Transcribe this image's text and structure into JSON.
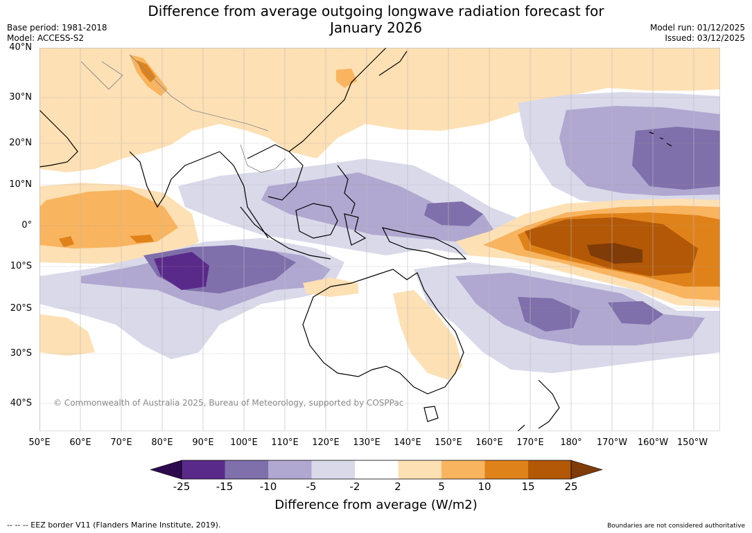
{
  "title_line1": "Difference from average outgoing longwave radiation forecast for",
  "title_line2": "January 2026",
  "base_period": "Base period: 1981-2018",
  "model": "Model: ACCESS-S2",
  "model_run": "Model run: 01/12/2025",
  "issued": "Issued: 03/12/2025",
  "lat_labels": [
    "40°N",
    "30°N",
    "20°N",
    "10°N",
    "0°",
    "10°S",
    "20°S",
    "30°S",
    "40°S"
  ],
  "lon_labels": [
    "50°E",
    "60°E",
    "70°E",
    "80°E",
    "90°E",
    "100°E",
    "110°E",
    "120°E",
    "130°E",
    "140°E",
    "150°E",
    "160°E",
    "170°E",
    "180°",
    "170°W",
    "160°W",
    "150°W"
  ],
  "copyright": "© Commonwealth of Australia 2025, Bureau of Meteorology, supported by COSPPac",
  "colorbar": {
    "title": "Difference from average (W/m2)",
    "ticks": [
      "-25",
      "-15",
      "-10",
      "-5",
      "-2",
      "2",
      "5",
      "10",
      "15",
      "25"
    ],
    "colors": {
      "under": "#2d0a4e",
      "c1": "#5a2a8a",
      "c2": "#7f6fab",
      "c3": "#b0a8d0",
      "c4": "#d9d9ea",
      "c5": "#ffffff",
      "c6": "#fde0b4",
      "c7": "#f9b45f",
      "c8": "#e0821a",
      "c9": "#b35806",
      "over": "#7f3b08"
    }
  },
  "footer_left": "--  --  -- EEZ border V11 (Flanders Marine Institute, 2019).",
  "footer_right": "Boundaries are not considered authoritative"
}
